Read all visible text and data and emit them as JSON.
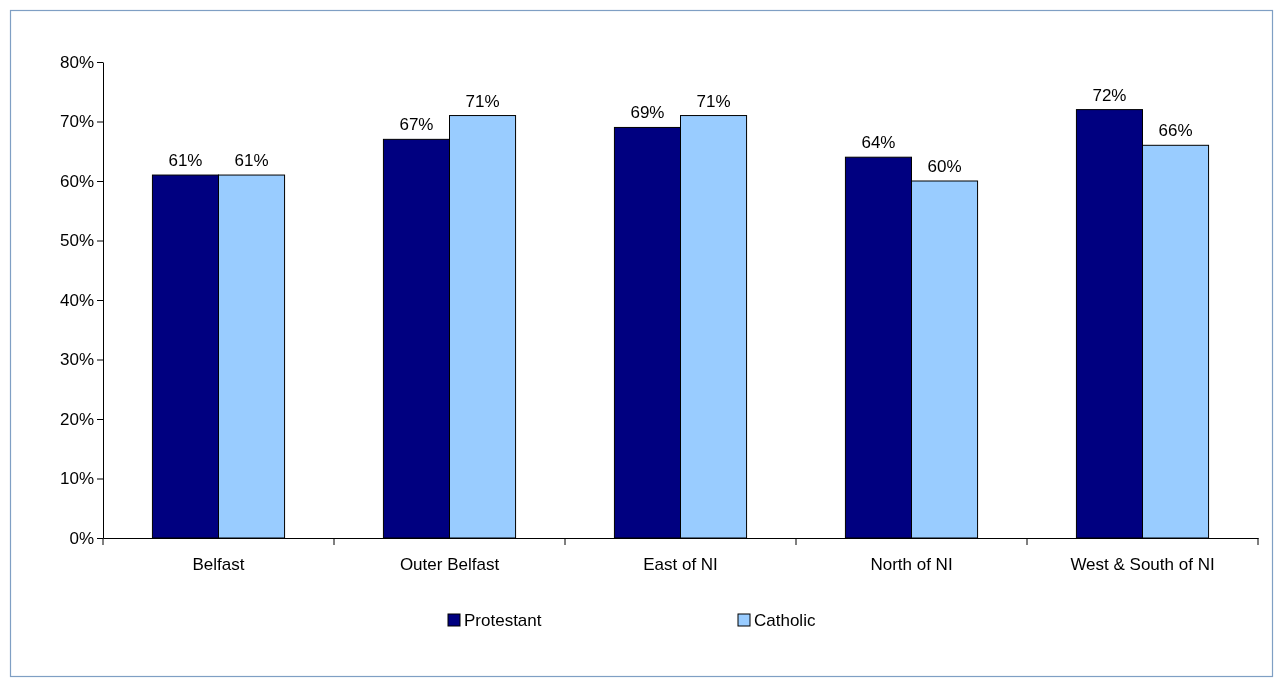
{
  "chart_data": {
    "type": "bar",
    "categories": [
      "Belfast",
      "Outer Belfast",
      "East of NI",
      "North of NI",
      "West & South of NI"
    ],
    "series": [
      {
        "name": "Protestant",
        "color": "#000080",
        "values": [
          61,
          67,
          69,
          64,
          72
        ],
        "value_labels": [
          "61%",
          "67%",
          "69%",
          "64%",
          "72%"
        ]
      },
      {
        "name": "Catholic",
        "color": "#99ccff",
        "values": [
          61,
          71,
          71,
          60,
          66
        ],
        "value_labels": [
          "61%",
          "71%",
          "71%",
          "60%",
          "66%"
        ]
      }
    ],
    "ylim": [
      0,
      80
    ],
    "yticks": [
      {
        "value": 0,
        "label": "0%"
      },
      {
        "value": 10,
        "label": "10%"
      },
      {
        "value": 20,
        "label": "20%"
      },
      {
        "value": 30,
        "label": "30%"
      },
      {
        "value": 40,
        "label": "40%"
      },
      {
        "value": 50,
        "label": "50%"
      },
      {
        "value": 60,
        "label": "60%"
      },
      {
        "value": 70,
        "label": "70%"
      },
      {
        "value": 80,
        "label": "80%"
      }
    ],
    "grid": false,
    "legend": "bottom"
  }
}
